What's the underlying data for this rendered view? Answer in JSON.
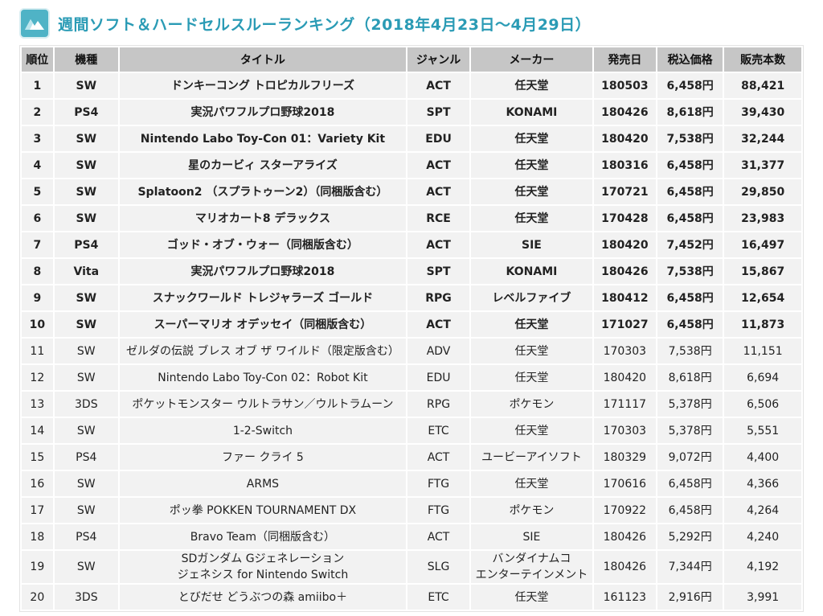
{
  "page": {
    "title": "週間ソフト＆ハードセルスルーランキング（2018年4月23日〜4月29日）",
    "logo_icon": "mountain-icon",
    "accent_color": "#2a9bb5"
  },
  "table": {
    "headers": [
      "順位",
      "機種",
      "タイトル",
      "ジャンル",
      "メーカー",
      "発売日",
      "税込価格",
      "販売本数"
    ],
    "rows": [
      {
        "rank": "1",
        "platform": "SW",
        "title": "ドンキーコング トロピカルフリーズ",
        "genre": "ACT",
        "maker": "任天堂",
        "release": "180503",
        "price": "6,458円",
        "sales": "88,421"
      },
      {
        "rank": "2",
        "platform": "PS4",
        "title": "実況パワフルプロ野球2018",
        "genre": "SPT",
        "maker": "KONAMI",
        "release": "180426",
        "price": "8,618円",
        "sales": "39,430"
      },
      {
        "rank": "3",
        "platform": "SW",
        "title": "Nintendo Labo Toy-Con 01：Variety Kit",
        "genre": "EDU",
        "maker": "任天堂",
        "release": "180420",
        "price": "7,538円",
        "sales": "32,244"
      },
      {
        "rank": "4",
        "platform": "SW",
        "title": "星のカービィ スターアライズ",
        "genre": "ACT",
        "maker": "任天堂",
        "release": "180316",
        "price": "6,458円",
        "sales": "31,377"
      },
      {
        "rank": "5",
        "platform": "SW",
        "title": "Splatoon2 （スプラトゥーン2）（同梱版含む）",
        "genre": "ACT",
        "maker": "任天堂",
        "release": "170721",
        "price": "6,458円",
        "sales": "29,850"
      },
      {
        "rank": "6",
        "platform": "SW",
        "title": "マリオカート8 デラックス",
        "genre": "RCE",
        "maker": "任天堂",
        "release": "170428",
        "price": "6,458円",
        "sales": "23,983"
      },
      {
        "rank": "7",
        "platform": "PS4",
        "title": "ゴッド・オブ・ウォー（同梱版含む）",
        "genre": "ACT",
        "maker": "SIE",
        "release": "180420",
        "price": "7,452円",
        "sales": "16,497"
      },
      {
        "rank": "8",
        "platform": "Vita",
        "title": "実況パワフルプロ野球2018",
        "genre": "SPT",
        "maker": "KONAMI",
        "release": "180426",
        "price": "7,538円",
        "sales": "15,867"
      },
      {
        "rank": "9",
        "platform": "SW",
        "title": "スナックワールド トレジャラーズ ゴールド",
        "genre": "RPG",
        "maker": "レベルファイブ",
        "release": "180412",
        "price": "6,458円",
        "sales": "12,654"
      },
      {
        "rank": "10",
        "platform": "SW",
        "title": "スーパーマリオ オデッセイ（同梱版含む）",
        "genre": "ACT",
        "maker": "任天堂",
        "release": "171027",
        "price": "6,458円",
        "sales": "11,873"
      },
      {
        "rank": "11",
        "platform": "SW",
        "title": "ゼルダの伝説 ブレス オブ ザ ワイルド（限定版含む）",
        "genre": "ADV",
        "maker": "任天堂",
        "release": "170303",
        "price": "7,538円",
        "sales": "11,151"
      },
      {
        "rank": "12",
        "platform": "SW",
        "title": "Nintendo Labo Toy-Con 02：Robot Kit",
        "genre": "EDU",
        "maker": "任天堂",
        "release": "180420",
        "price": "8,618円",
        "sales": "6,694"
      },
      {
        "rank": "13",
        "platform": "3DS",
        "title": "ポケットモンスター ウルトラサン／ウルトラムーン",
        "genre": "RPG",
        "maker": "ポケモン",
        "release": "171117",
        "price": "5,378円",
        "sales": "6,506"
      },
      {
        "rank": "14",
        "platform": "SW",
        "title": "1-2-Switch",
        "genre": "ETC",
        "maker": "任天堂",
        "release": "170303",
        "price": "5,378円",
        "sales": "5,551"
      },
      {
        "rank": "15",
        "platform": "PS4",
        "title": "ファー クライ 5",
        "genre": "ACT",
        "maker": "ユービーアイソフト",
        "release": "180329",
        "price": "9,072円",
        "sales": "4,400"
      },
      {
        "rank": "16",
        "platform": "SW",
        "title": "ARMS",
        "genre": "FTG",
        "maker": "任天堂",
        "release": "170616",
        "price": "6,458円",
        "sales": "4,366"
      },
      {
        "rank": "17",
        "platform": "SW",
        "title": "ポッ拳 POKKEN TOURNAMENT DX",
        "genre": "FTG",
        "maker": "ポケモン",
        "release": "170922",
        "price": "6,458円",
        "sales": "4,264"
      },
      {
        "rank": "18",
        "platform": "PS4",
        "title": "Bravo Team（同梱版含む）",
        "genre": "ACT",
        "maker": "SIE",
        "release": "180426",
        "price": "5,292円",
        "sales": "4,240"
      },
      {
        "rank": "19",
        "platform": "SW",
        "title": "SDガンダム Gジェネレーション",
        "title2": "ジェネシス for Nintendo Switch",
        "genre": "SLG",
        "maker": "バンダイナムコ",
        "maker2": "エンターテインメント",
        "release": "180426",
        "price": "7,344円",
        "sales": "4,192"
      },
      {
        "rank": "20",
        "platform": "3DS",
        "title": "とびだせ どうぶつの森 amiibo＋",
        "genre": "ETC",
        "maker": "任天堂",
        "release": "161123",
        "price": "2,916円",
        "sales": "3,991"
      }
    ]
  }
}
